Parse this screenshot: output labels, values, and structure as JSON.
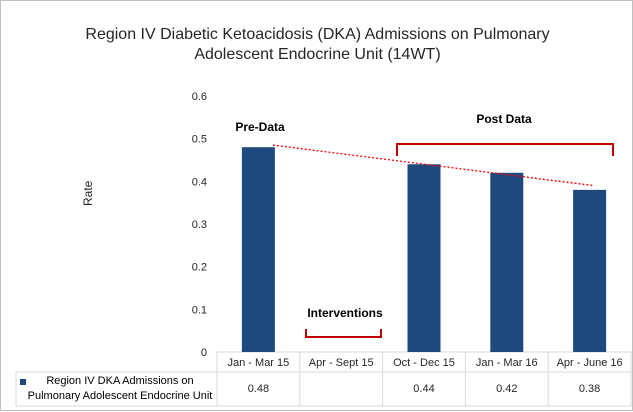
{
  "chart_data": {
    "type": "bar",
    "title_line1": "Region IV  Diabetic Ketoacidosis (DKA) Admissions on Pulmonary",
    "title_line2": "Adolescent Endocrine Unit (14WT)",
    "ylabel": "Rate",
    "ylim": [
      0,
      0.6
    ],
    "yticks": [
      "0",
      "0.1",
      "0.2",
      "0.3",
      "0.4",
      "0.5",
      "0.6"
    ],
    "categories": [
      "Jan - Mar 15",
      "Apr - Sept 15",
      "Oct - Dec 15",
      "Jan - Mar 16",
      "Apr - June 16"
    ],
    "series": [
      {
        "name": "Region IV DKA Admissions on Pulmonary Adolescent Endocrine Unit",
        "name_line1": "Region IV DKA Admissions on",
        "name_line2": "Pulmonary Adolescent Endocrine Unit",
        "values": [
          0.48,
          null,
          0.44,
          0.42,
          0.38
        ],
        "labels": [
          "0.48",
          "",
          "0.44",
          "0.42",
          "0.38"
        ],
        "color": "#1f497d"
      }
    ],
    "trendline": {
      "style": "dotted",
      "color": "#ff0000",
      "start": 0.485,
      "end": 0.39
    },
    "annotations": {
      "pre": "Pre-Data",
      "post": "Post Data",
      "interventions": "Interventions"
    },
    "grid": false,
    "legend": "data-table-bottom"
  },
  "colors": {
    "bar": "#1f497d",
    "bracket": "#c00000",
    "trend": "#ff0000"
  }
}
